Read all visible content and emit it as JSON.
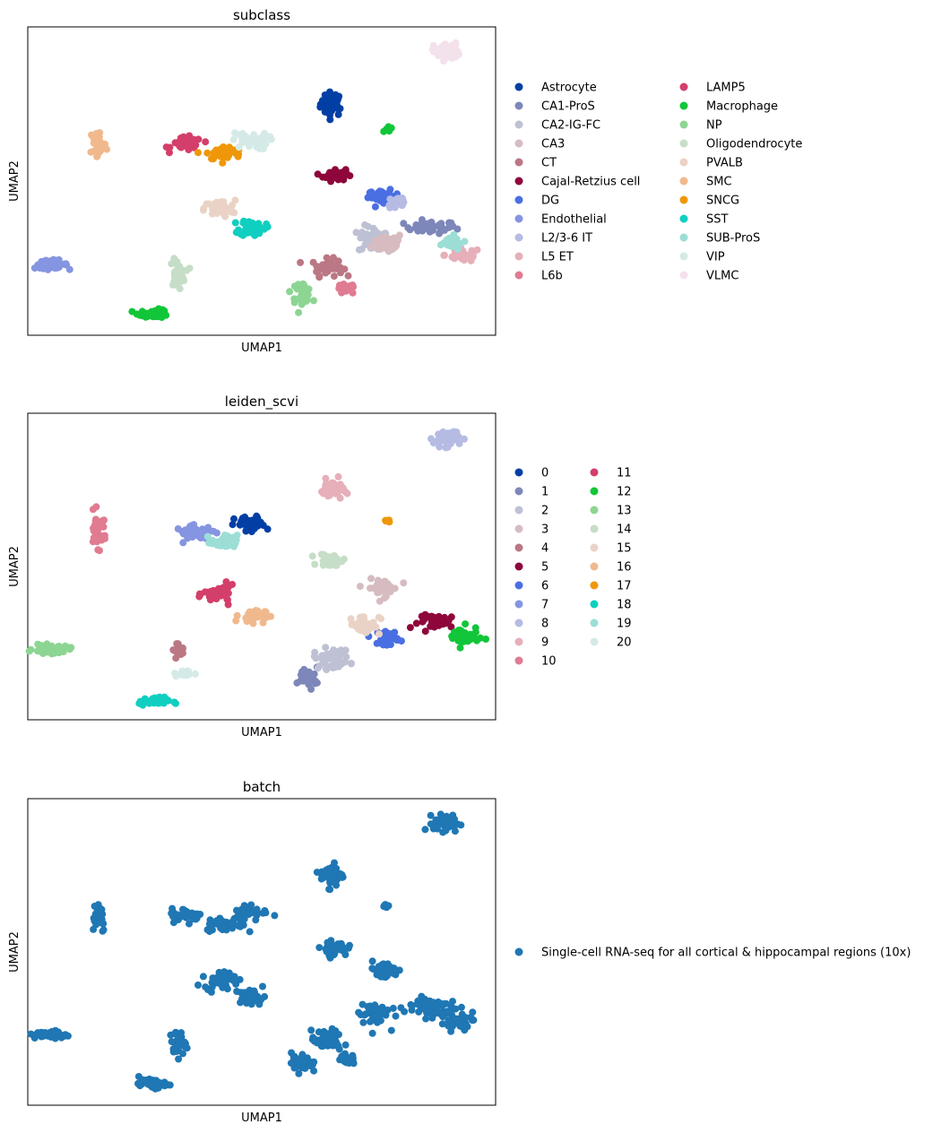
{
  "chart_data": [
    {
      "type": "scatter",
      "title": "subclass",
      "xlabel": "UMAP1",
      "ylabel": "UMAP2",
      "xlim": [
        0,
        100
      ],
      "ylim": [
        0,
        100
      ],
      "grid": false,
      "legend": "right, 2 columns",
      "legend_columns": 2,
      "series": [
        {
          "name": "Astrocyte",
          "color": "#023fa5",
          "clusters": [
            [
              65,
              75,
              2.2,
              3.5,
              40
            ]
          ]
        },
        {
          "name": "CA1-ProS",
          "color": "#7d87b9",
          "clusters": [
            [
              86,
              35,
              5,
              1.8,
              40
            ]
          ]
        },
        {
          "name": "CA2-IG-FC",
          "color": "#bec1d4",
          "clusters": [
            [
              74,
              31,
              3,
              4,
              45
            ]
          ]
        },
        {
          "name": "CA3",
          "color": "#d6bcc0",
          "clusters": [
            [
              77,
              30,
              3,
              3,
              40
            ]
          ]
        },
        {
          "name": "CT",
          "color": "#bb7784",
          "clusters": [
            [
              64,
              22,
              3,
              2.5,
              40
            ]
          ]
        },
        {
          "name": "Cajal-Retzius cell",
          "color": "#8e063b",
          "clusters": [
            [
              65.5,
              52,
              2.2,
              1.8,
              40
            ]
          ]
        },
        {
          "name": "DG",
          "color": "#4a6fe3",
          "clusters": [
            [
              76,
              45,
              3,
              1.8,
              40
            ]
          ]
        },
        {
          "name": "Endothelial",
          "color": "#8595e1",
          "clusters": [
            [
              5,
              23,
              3.2,
              1.2,
              45
            ]
          ]
        },
        {
          "name": "L2/3-6 IT",
          "color": "#b5bbe3",
          "clusters": [
            [
              79,
              43,
              2,
              2.5,
              25
            ]
          ]
        },
        {
          "name": "L5 ET",
          "color": "#e6afb9",
          "clusters": [
            [
              93,
              26,
              3.5,
              2,
              30
            ]
          ]
        },
        {
          "name": "L6b",
          "color": "#e07b91",
          "clusters": [
            [
              68,
              15,
              1.8,
              1.5,
              30
            ]
          ]
        },
        {
          "name": "LAMP5",
          "color": "#d33f6a",
          "clusters": [
            [
              34,
              62,
              3,
              2,
              40
            ]
          ]
        },
        {
          "name": "Macrophage",
          "color": "#11c638",
          "clusters": [
            [
              27,
              7,
              3,
              1.2,
              40
            ],
            [
              77,
              67,
              1,
              0.8,
              6
            ]
          ]
        },
        {
          "name": "NP",
          "color": "#8dd593",
          "clusters": [
            [
              58.5,
              14,
              2,
              3,
              35
            ]
          ]
        },
        {
          "name": "Oligodendrocyte",
          "color": "#c6dec7",
          "clusters": [
            [
              32,
              20,
              1.5,
              4,
              30
            ]
          ]
        },
        {
          "name": "PVALB",
          "color": "#ead3c6",
          "clusters": [
            [
              41,
              41,
              3,
              2.5,
              45
            ]
          ]
        },
        {
          "name": "SMC",
          "color": "#f0b98d",
          "clusters": [
            [
              15,
              62,
              1.6,
              5,
              35
            ]
          ]
        },
        {
          "name": "SNCG",
          "color": "#ef9708",
          "clusters": [
            [
              42,
              59,
              3.5,
              2,
              45
            ]
          ]
        },
        {
          "name": "SST",
          "color": "#0fcfc0",
          "clusters": [
            [
              48,
              35,
              2.5,
              2.5,
              40
            ]
          ]
        },
        {
          "name": "SUB-ProS",
          "color": "#9cded6",
          "clusters": [
            [
              90,
              30,
              3,
              2,
              30
            ]
          ]
        },
        {
          "name": "VIP",
          "color": "#d5eae7",
          "clusters": [
            [
              47.5,
              63,
              3.5,
              2.5,
              40
            ]
          ]
        },
        {
          "name": "VLMC",
          "color": "#f3e1eb",
          "clusters": [
            [
              89.5,
              92,
              2.5,
              2.5,
              45
            ]
          ]
        }
      ]
    },
    {
      "type": "scatter",
      "title": "leiden_scvi",
      "xlabel": "UMAP1",
      "ylabel": "UMAP2",
      "xlim": [
        0,
        100
      ],
      "ylim": [
        0,
        100
      ],
      "grid": false,
      "legend": "right, 2 columns",
      "legend_columns": 2,
      "series": [
        {
          "name": "0",
          "color": "#023fa5",
          "clusters": [
            [
              47.5,
              63.5,
              3,
              2.5,
              45
            ]
          ]
        },
        {
          "name": "1",
          "color": "#7d87b9",
          "clusters": [
            [
              60,
              14,
              2,
              2.8,
              35
            ]
          ]
        },
        {
          "name": "2",
          "color": "#bec1d4",
          "clusters": [
            [
              65,
              20,
              3.5,
              3,
              50
            ]
          ]
        },
        {
          "name": "3",
          "color": "#d6bcc0",
          "clusters": [
            [
              76,
              43,
              3,
              2.5,
              40
            ]
          ]
        },
        {
          "name": "4",
          "color": "#bb7784",
          "clusters": [
            [
              32,
              23,
              1.2,
              2,
              15
            ]
          ]
        },
        {
          "name": "5",
          "color": "#8e063b",
          "clusters": [
            [
              88,
              32,
              4,
              2,
              40
            ]
          ]
        },
        {
          "name": "6",
          "color": "#4a6fe3",
          "clusters": [
            [
              77,
              27,
              2,
              2.2,
              30
            ]
          ]
        },
        {
          "name": "7",
          "color": "#8595e1",
          "clusters": [
            [
              36,
              61,
              4,
              2,
              40
            ]
          ]
        },
        {
          "name": "8",
          "color": "#b5bbe3",
          "clusters": [
            [
              89.5,
              92,
              2.5,
              2.5,
              45
            ]
          ]
        },
        {
          "name": "9",
          "color": "#e6afb9",
          "clusters": [
            [
              65,
              75,
              2.2,
              3,
              40
            ]
          ]
        },
        {
          "name": "10",
          "color": "#e07b91",
          "clusters": [
            [
              15,
              62,
              1.6,
              5,
              35
            ]
          ]
        },
        {
          "name": "11",
          "color": "#d33f6a",
          "clusters": [
            [
              41,
              41,
              3,
              2.5,
              45
            ]
          ]
        },
        {
          "name": "12",
          "color": "#11c638",
          "clusters": [
            [
              93,
              27,
              3,
              3,
              45
            ]
          ]
        },
        {
          "name": "13",
          "color": "#8dd593",
          "clusters": [
            [
              5,
              23,
              3.5,
              1.2,
              45
            ]
          ]
        },
        {
          "name": "14",
          "color": "#c6dec7",
          "clusters": [
            [
              65,
              52,
              2.5,
              2,
              35
            ]
          ]
        },
        {
          "name": "15",
          "color": "#ead3c6",
          "clusters": [
            [
              72,
              31,
              3,
              3,
              40
            ]
          ]
        },
        {
          "name": "16",
          "color": "#f0b98d",
          "clusters": [
            [
              48,
              34,
              2.5,
              2,
              35
            ]
          ]
        },
        {
          "name": "17",
          "color": "#ef9708",
          "clusters": [
            [
              77,
              65,
              1,
              0.8,
              6
            ]
          ]
        },
        {
          "name": "18",
          "color": "#0fcfc0",
          "clusters": [
            [
              27,
              6,
              3,
              1.2,
              40
            ]
          ]
        },
        {
          "name": "19",
          "color": "#9cded6",
          "clusters": [
            [
              42,
              58,
              2.5,
              2,
              35
            ]
          ]
        },
        {
          "name": "20",
          "color": "#d5eae7",
          "clusters": [
            [
              33.5,
              15,
              2,
              1,
              20
            ]
          ]
        }
      ]
    },
    {
      "type": "scatter",
      "title": "batch",
      "xlabel": "UMAP1",
      "ylabel": "UMAP2",
      "xlim": [
        0,
        100
      ],
      "ylim": [
        0,
        100
      ],
      "grid": false,
      "legend": "right, 1 column",
      "legend_columns": 1,
      "series": [
        {
          "name": "Single-cell RNA-seq for all cortical & hippocampal regions (10x)",
          "color": "#1f77b4",
          "clusters": [
            [
              89.5,
              92,
              2.5,
              2.5,
              45
            ],
            [
              65,
              75,
              2.2,
              3.5,
              40
            ],
            [
              77,
              65,
              1,
              0.8,
              6
            ],
            [
              15,
              62,
              1.6,
              5,
              35
            ],
            [
              34,
              62,
              3,
              2,
              40
            ],
            [
              42,
              59,
              3.5,
              2,
              45
            ],
            [
              47.5,
              63,
              3.5,
              2.5,
              40
            ],
            [
              65.5,
              51,
              2.5,
              2,
              40
            ],
            [
              76,
              44,
              3,
              2.5,
              45
            ],
            [
              41,
              41,
              3,
              2.5,
              45
            ],
            [
              48,
              35,
              2.5,
              2.5,
              40
            ],
            [
              5,
              23,
              3.2,
              1.2,
              45
            ],
            [
              32,
              20,
              1.5,
              4,
              30
            ],
            [
              27,
              7,
              3,
              1.2,
              40
            ],
            [
              74,
              30,
              3,
              4,
              50
            ],
            [
              86,
              32,
              5,
              3,
              60
            ],
            [
              92,
              27,
              3.5,
              2.5,
              40
            ],
            [
              64,
              21,
              3,
              3,
              50
            ],
            [
              58.5,
              14,
              2,
              3,
              35
            ],
            [
              68,
              15,
              1.8,
              1.5,
              25
            ]
          ]
        }
      ]
    }
  ]
}
